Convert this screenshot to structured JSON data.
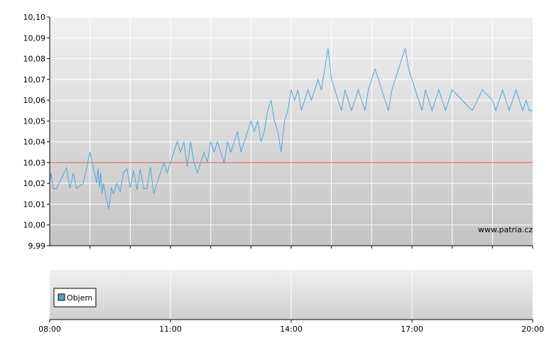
{
  "watermark": "www.patria.cz",
  "colors": {
    "price_line": "#4aa8d4",
    "reference_line": "#e05050",
    "legend_swatch": "#4aa8d4"
  },
  "chart_data": [
    {
      "type": "line",
      "ylim": [
        9.99,
        10.1
      ],
      "x_range": [
        "08:00",
        "20:00"
      ],
      "y_ticks": [
        "9,99",
        "10,00",
        "10,01",
        "10,02",
        "10,03",
        "10,04",
        "10,05",
        "10,06",
        "10,07",
        "10,08",
        "10,09",
        "10,10"
      ],
      "grid": true,
      "reference_line": 10.03,
      "series": [
        {
          "x": [
            "08:00",
            "08:02",
            "08:05",
            "08:10",
            "08:25",
            "08:30",
            "08:32",
            "08:35",
            "08:40",
            "08:50",
            "09:00",
            "09:10",
            "09:12",
            "09:14",
            "09:16",
            "09:18",
            "09:20",
            "09:25",
            "09:28",
            "09:32",
            "09:35",
            "09:40",
            "09:45",
            "09:50",
            "09:55",
            "10:00",
            "10:05",
            "10:10",
            "10:15",
            "10:20",
            "10:25",
            "10:30",
            "10:35",
            "10:40",
            "10:45",
            "10:50",
            "10:55",
            "11:00",
            "11:05",
            "11:10",
            "11:15",
            "11:20",
            "11:25",
            "11:30",
            "11:35",
            "11:40",
            "11:45",
            "11:50",
            "11:55",
            "12:00",
            "12:05",
            "12:10",
            "12:15",
            "12:20",
            "12:25",
            "12:30",
            "12:35",
            "12:40",
            "12:45",
            "12:50",
            "12:55",
            "13:00",
            "13:05",
            "13:10",
            "13:15",
            "13:20",
            "13:25",
            "13:30",
            "13:35",
            "13:40",
            "13:45",
            "13:50",
            "13:55",
            "14:00",
            "14:05",
            "14:10",
            "14:15",
            "14:20",
            "14:25",
            "14:30",
            "14:35",
            "14:40",
            "14:45",
            "14:50",
            "14:55",
            "15:00",
            "15:05",
            "15:10",
            "15:15",
            "15:20",
            "15:25",
            "15:30",
            "15:35",
            "15:40",
            "15:45",
            "15:50",
            "15:55",
            "16:00",
            "16:05",
            "16:10",
            "16:15",
            "16:20",
            "16:25",
            "16:30",
            "16:35",
            "16:40",
            "16:45",
            "16:50",
            "16:55",
            "17:00",
            "17:05",
            "17:10",
            "17:15",
            "17:20",
            "17:25",
            "17:30",
            "17:35",
            "17:40",
            "17:45",
            "17:50",
            "17:55",
            "18:00",
            "18:15",
            "18:30",
            "18:45",
            "19:00",
            "19:05",
            "19:10",
            "19:15",
            "19:20",
            "19:25",
            "19:30",
            "19:35",
            "19:40",
            "19:45",
            "19:50",
            "19:55",
            "20:00"
          ],
          "values": [
            10.02,
            10.025,
            10.0175,
            10.0175,
            10.0275,
            10.0175,
            10.02,
            10.025,
            10.0175,
            10.02,
            10.035,
            10.02,
            10.027,
            10.018,
            10.025,
            10.015,
            10.02,
            10.012,
            10.0075,
            10.018,
            10.015,
            10.02,
            10.016,
            10.025,
            10.027,
            10.018,
            10.026,
            10.017,
            10.027,
            10.0175,
            10.0175,
            10.028,
            10.015,
            10.02,
            10.025,
            10.03,
            10.025,
            10.03,
            10.035,
            10.04,
            10.035,
            10.04,
            10.028,
            10.04,
            10.03,
            10.025,
            10.03,
            10.035,
            10.03,
            10.04,
            10.035,
            10.04,
            10.035,
            10.03,
            10.04,
            10.035,
            10.04,
            10.045,
            10.035,
            10.04,
            10.045,
            10.05,
            10.045,
            10.05,
            10.04,
            10.045,
            10.055,
            10.06,
            10.05,
            10.045,
            10.035,
            10.05,
            10.055,
            10.065,
            10.06,
            10.065,
            10.055,
            10.06,
            10.065,
            10.06,
            10.065,
            10.07,
            10.065,
            10.075,
            10.085,
            10.07,
            10.065,
            10.06,
            10.055,
            10.065,
            10.06,
            10.055,
            10.06,
            10.065,
            10.06,
            10.055,
            10.065,
            10.07,
            10.075,
            10.07,
            10.065,
            10.06,
            10.055,
            10.065,
            10.07,
            10.075,
            10.08,
            10.085,
            10.075,
            10.07,
            10.065,
            10.06,
            10.055,
            10.065,
            10.06,
            10.055,
            10.06,
            10.065,
            10.06,
            10.055,
            10.06,
            10.065,
            10.06,
            10.055,
            10.065,
            10.06,
            10.055,
            10.06,
            10.065,
            10.06,
            10.055,
            10.06,
            10.065,
            10.06,
            10.055,
            10.06,
            10.055,
            10.055
          ]
        }
      ]
    },
    {
      "type": "bar",
      "x_ticks": [
        "08:00",
        "11:00",
        "14:00",
        "17:00",
        "20:00"
      ],
      "grid": true,
      "legend": [
        "Objem"
      ],
      "legend_placement": "left",
      "series": [
        {
          "name": "Objem",
          "x": [],
          "values": []
        }
      ]
    }
  ]
}
